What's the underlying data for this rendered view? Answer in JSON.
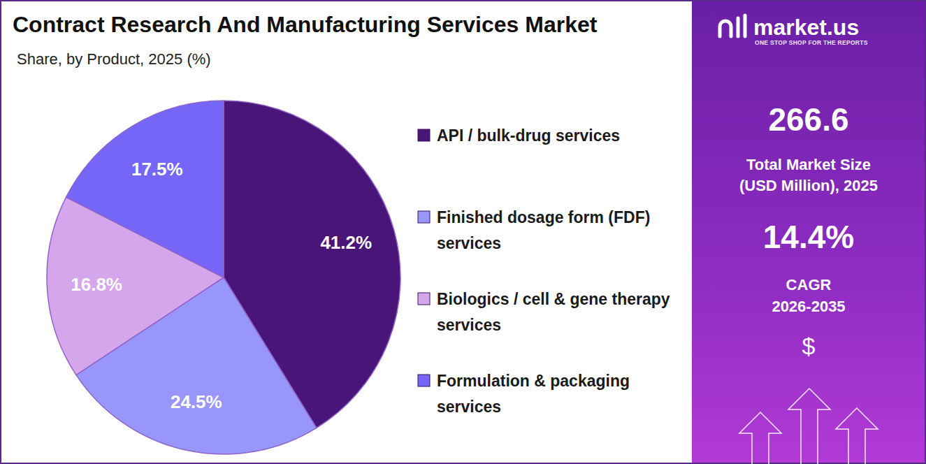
{
  "chart_data": {
    "type": "pie",
    "title": "Contract Research And Manufacturing Services Market",
    "subtitle": "Share, by Product, 2025 (%)",
    "categories": [
      "API / bulk-drug services",
      "Finished dosage form (FDF) services",
      "Biologics / cell & gene therapy services",
      "Formulation & packaging services"
    ],
    "values": [
      41.2,
      24.5,
      16.8,
      17.5
    ],
    "value_labels": [
      "41.2%",
      "24.5%",
      "16.8%",
      "17.5%"
    ],
    "colors": [
      "#4a1579",
      "#9896fb",
      "#d6a6ec",
      "#7566f8"
    ],
    "data_labels": true,
    "legend": "right",
    "annotations": [
      "market.us",
      "ONE STOP SHOP FOR THE REPORTS",
      "266.6",
      "Total Market Size",
      "(USD Million), 2025",
      "14.4%",
      "CAGR",
      "2026-2035",
      "$"
    ]
  }
}
